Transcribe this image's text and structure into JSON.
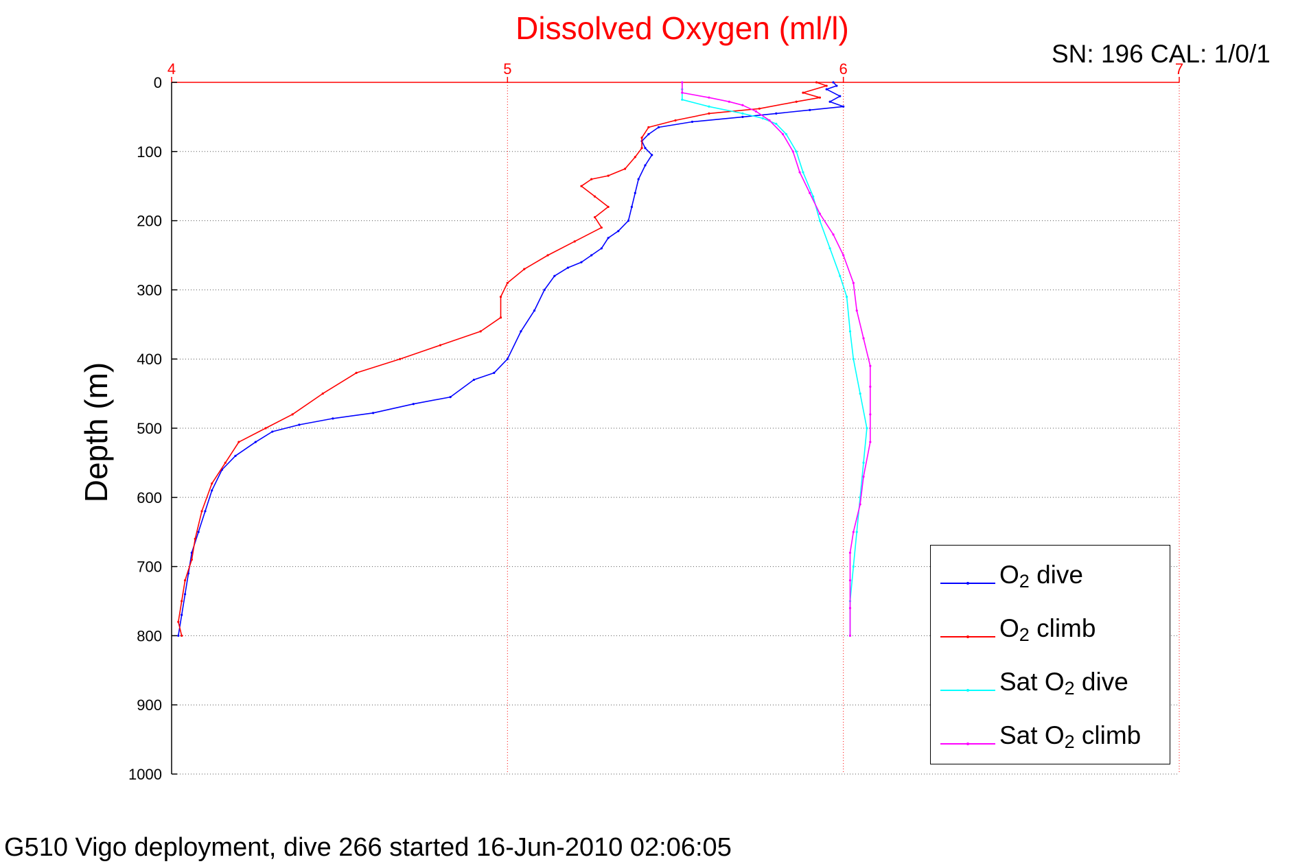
{
  "chart_data": {
    "type": "line",
    "title": "Dissolved Oxygen (ml/l)",
    "header_right": "SN: 196  CAL: 1/0/1",
    "footer": "G510 Vigo deployment, dive 266 started 16-Jun-2010 02:06:05",
    "xlabel": "",
    "ylabel": "Depth (m)",
    "xlim": [
      4,
      7
    ],
    "ylim": [
      0,
      1000
    ],
    "y_reversed": true,
    "x_axis_position": "top",
    "x_ticks": [
      4,
      5,
      6,
      7
    ],
    "y_ticks": [
      0,
      100,
      200,
      300,
      400,
      500,
      600,
      700,
      800,
      900,
      1000
    ],
    "grid": true,
    "legend_position": "lower-right",
    "colors": {
      "title": "#ff0000",
      "x_ticks": "#ff0000",
      "grid": "#555555",
      "axis": "#ff0000"
    },
    "series": [
      {
        "name_main": "O",
        "name_sub": "2",
        "name_suffix": " dive",
        "name_prefix": "",
        "color": "#0000ff",
        "points": [
          [
            5.97,
            0
          ],
          [
            5.98,
            5
          ],
          [
            5.95,
            10
          ],
          [
            5.99,
            20
          ],
          [
            5.96,
            28
          ],
          [
            6.0,
            35
          ],
          [
            5.9,
            40
          ],
          [
            5.8,
            45
          ],
          [
            5.7,
            50
          ],
          [
            5.55,
            57
          ],
          [
            5.45,
            65
          ],
          [
            5.42,
            75
          ],
          [
            5.4,
            85
          ],
          [
            5.41,
            95
          ],
          [
            5.43,
            105
          ],
          [
            5.41,
            120
          ],
          [
            5.39,
            140
          ],
          [
            5.38,
            160
          ],
          [
            5.37,
            180
          ],
          [
            5.36,
            200
          ],
          [
            5.33,
            215
          ],
          [
            5.3,
            225
          ],
          [
            5.28,
            240
          ],
          [
            5.25,
            250
          ],
          [
            5.22,
            260
          ],
          [
            5.18,
            268
          ],
          [
            5.14,
            280
          ],
          [
            5.11,
            300
          ],
          [
            5.08,
            330
          ],
          [
            5.04,
            360
          ],
          [
            5.0,
            400
          ],
          [
            4.96,
            420
          ],
          [
            4.9,
            430
          ],
          [
            4.83,
            455
          ],
          [
            4.72,
            465
          ],
          [
            4.6,
            478
          ],
          [
            4.48,
            486
          ],
          [
            4.38,
            495
          ],
          [
            4.3,
            505
          ],
          [
            4.25,
            520
          ],
          [
            4.19,
            540
          ],
          [
            4.15,
            560
          ],
          [
            4.12,
            590
          ],
          [
            4.1,
            620
          ],
          [
            4.08,
            650
          ],
          [
            4.06,
            680
          ],
          [
            4.05,
            710
          ],
          [
            4.04,
            740
          ],
          [
            4.03,
            770
          ],
          [
            4.02,
            800
          ]
        ]
      },
      {
        "name_main": "O",
        "name_sub": "2",
        "name_suffix": " climb",
        "name_prefix": "",
        "color": "#ff0000",
        "points": [
          [
            5.92,
            0
          ],
          [
            5.95,
            5
          ],
          [
            5.88,
            15
          ],
          [
            5.93,
            22
          ],
          [
            5.86,
            28
          ],
          [
            5.75,
            38
          ],
          [
            5.6,
            45
          ],
          [
            5.5,
            55
          ],
          [
            5.42,
            65
          ],
          [
            5.4,
            80
          ],
          [
            5.4,
            95
          ],
          [
            5.38,
            108
          ],
          [
            5.35,
            125
          ],
          [
            5.3,
            135
          ],
          [
            5.25,
            140
          ],
          [
            5.22,
            150
          ],
          [
            5.26,
            165
          ],
          [
            5.3,
            180
          ],
          [
            5.26,
            195
          ],
          [
            5.28,
            210
          ],
          [
            5.2,
            230
          ],
          [
            5.12,
            250
          ],
          [
            5.05,
            270
          ],
          [
            5.0,
            290
          ],
          [
            4.98,
            310
          ],
          [
            4.98,
            340
          ],
          [
            4.92,
            360
          ],
          [
            4.8,
            380
          ],
          [
            4.68,
            400
          ],
          [
            4.55,
            420
          ],
          [
            4.45,
            450
          ],
          [
            4.36,
            480
          ],
          [
            4.28,
            500
          ],
          [
            4.2,
            520
          ],
          [
            4.16,
            550
          ],
          [
            4.12,
            580
          ],
          [
            4.09,
            620
          ],
          [
            4.07,
            660
          ],
          [
            4.06,
            690
          ],
          [
            4.04,
            720
          ],
          [
            4.03,
            750
          ],
          [
            4.02,
            780
          ],
          [
            4.03,
            800
          ]
        ]
      },
      {
        "name_main": "O",
        "name_sub": "2",
        "name_suffix": " dive",
        "name_prefix": "Sat ",
        "color": "#00ffff",
        "points": [
          [
            5.52,
            0
          ],
          [
            5.52,
            10
          ],
          [
            5.52,
            25
          ],
          [
            5.6,
            35
          ],
          [
            5.7,
            45
          ],
          [
            5.76,
            52
          ],
          [
            5.8,
            60
          ],
          [
            5.83,
            75
          ],
          [
            5.86,
            100
          ],
          [
            5.88,
            130
          ],
          [
            5.91,
            165
          ],
          [
            5.93,
            200
          ],
          [
            5.96,
            240
          ],
          [
            5.99,
            280
          ],
          [
            6.01,
            310
          ],
          [
            6.02,
            360
          ],
          [
            6.03,
            400
          ],
          [
            6.05,
            450
          ],
          [
            6.07,
            500
          ],
          [
            6.06,
            550
          ],
          [
            6.05,
            600
          ],
          [
            6.04,
            650
          ],
          [
            6.03,
            700
          ],
          [
            6.02,
            750
          ],
          [
            6.02,
            800
          ]
        ]
      },
      {
        "name_main": "O",
        "name_sub": "2",
        "name_suffix": " climb",
        "name_prefix": "Sat ",
        "color": "#ff00ff",
        "points": [
          [
            5.52,
            0
          ],
          [
            5.52,
            15
          ],
          [
            5.6,
            22
          ],
          [
            5.66,
            28
          ],
          [
            5.7,
            33
          ],
          [
            5.74,
            42
          ],
          [
            5.78,
            55
          ],
          [
            5.82,
            75
          ],
          [
            5.85,
            100
          ],
          [
            5.87,
            130
          ],
          [
            5.9,
            160
          ],
          [
            5.93,
            190
          ],
          [
            5.97,
            220
          ],
          [
            6.0,
            250
          ],
          [
            6.03,
            290
          ],
          [
            6.04,
            330
          ],
          [
            6.06,
            370
          ],
          [
            6.08,
            410
          ],
          [
            6.08,
            440
          ],
          [
            6.08,
            480
          ],
          [
            6.08,
            520
          ],
          [
            6.06,
            570
          ],
          [
            6.05,
            610
          ],
          [
            6.03,
            650
          ],
          [
            6.02,
            680
          ],
          [
            6.02,
            720
          ],
          [
            6.02,
            760
          ],
          [
            6.02,
            800
          ]
        ]
      }
    ]
  }
}
